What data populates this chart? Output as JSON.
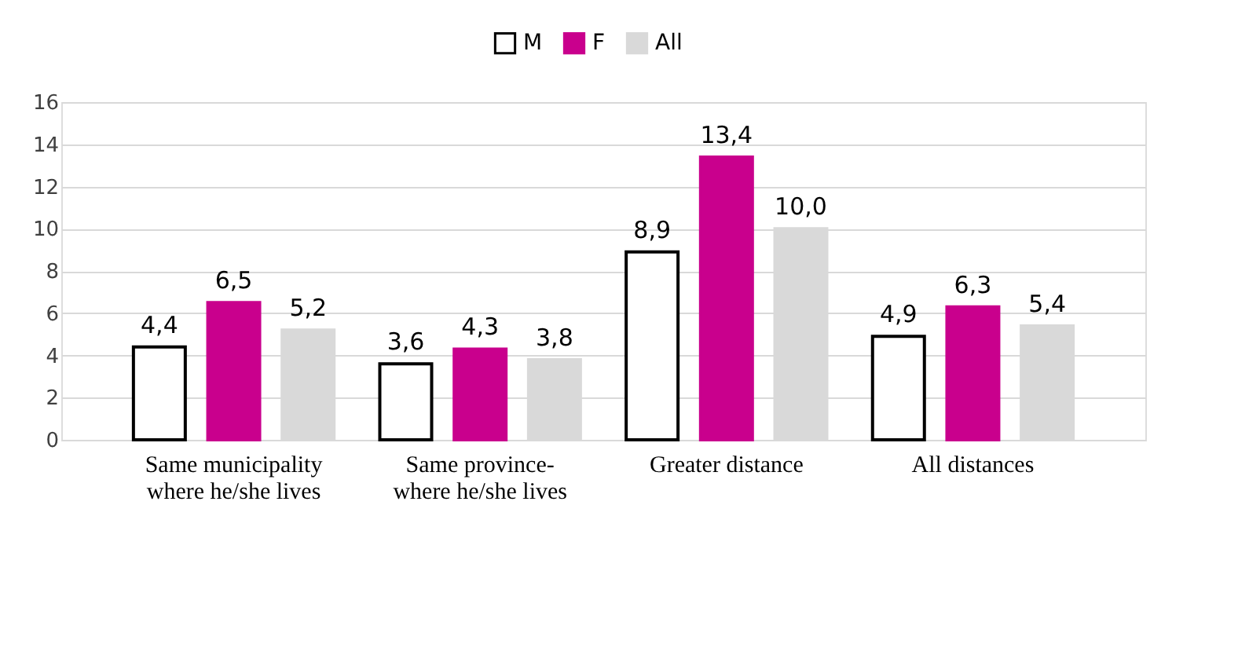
{
  "chart_data": {
    "type": "bar",
    "categories": [
      "Same municipality where he/she lives",
      "Same province-where he/she lives",
      "Greater distance",
      "All distances"
    ],
    "series": [
      {
        "name": "M",
        "color": "#ffffff",
        "values": [
          4.4,
          3.6,
          8.9,
          4.9
        ],
        "value_labels": [
          "4,4",
          "3,6",
          "8,9",
          "4,9"
        ]
      },
      {
        "name": "F",
        "color": "#c9008d",
        "values": [
          6.5,
          4.3,
          13.4,
          6.3
        ],
        "value_labels": [
          "6,5",
          "4,3",
          "13,4",
          "6,3"
        ]
      },
      {
        "name": "All",
        "color": "#d9d9d9",
        "values": [
          5.2,
          3.8,
          10.0,
          5.4
        ],
        "value_labels": [
          "5,2",
          "3,8",
          "10,0",
          "5,4"
        ]
      }
    ],
    "ylim": [
      0,
      16
    ],
    "yticks": [
      0,
      2,
      4,
      6,
      8,
      10,
      12,
      14,
      16
    ],
    "grid": "y",
    "legend": "top"
  }
}
